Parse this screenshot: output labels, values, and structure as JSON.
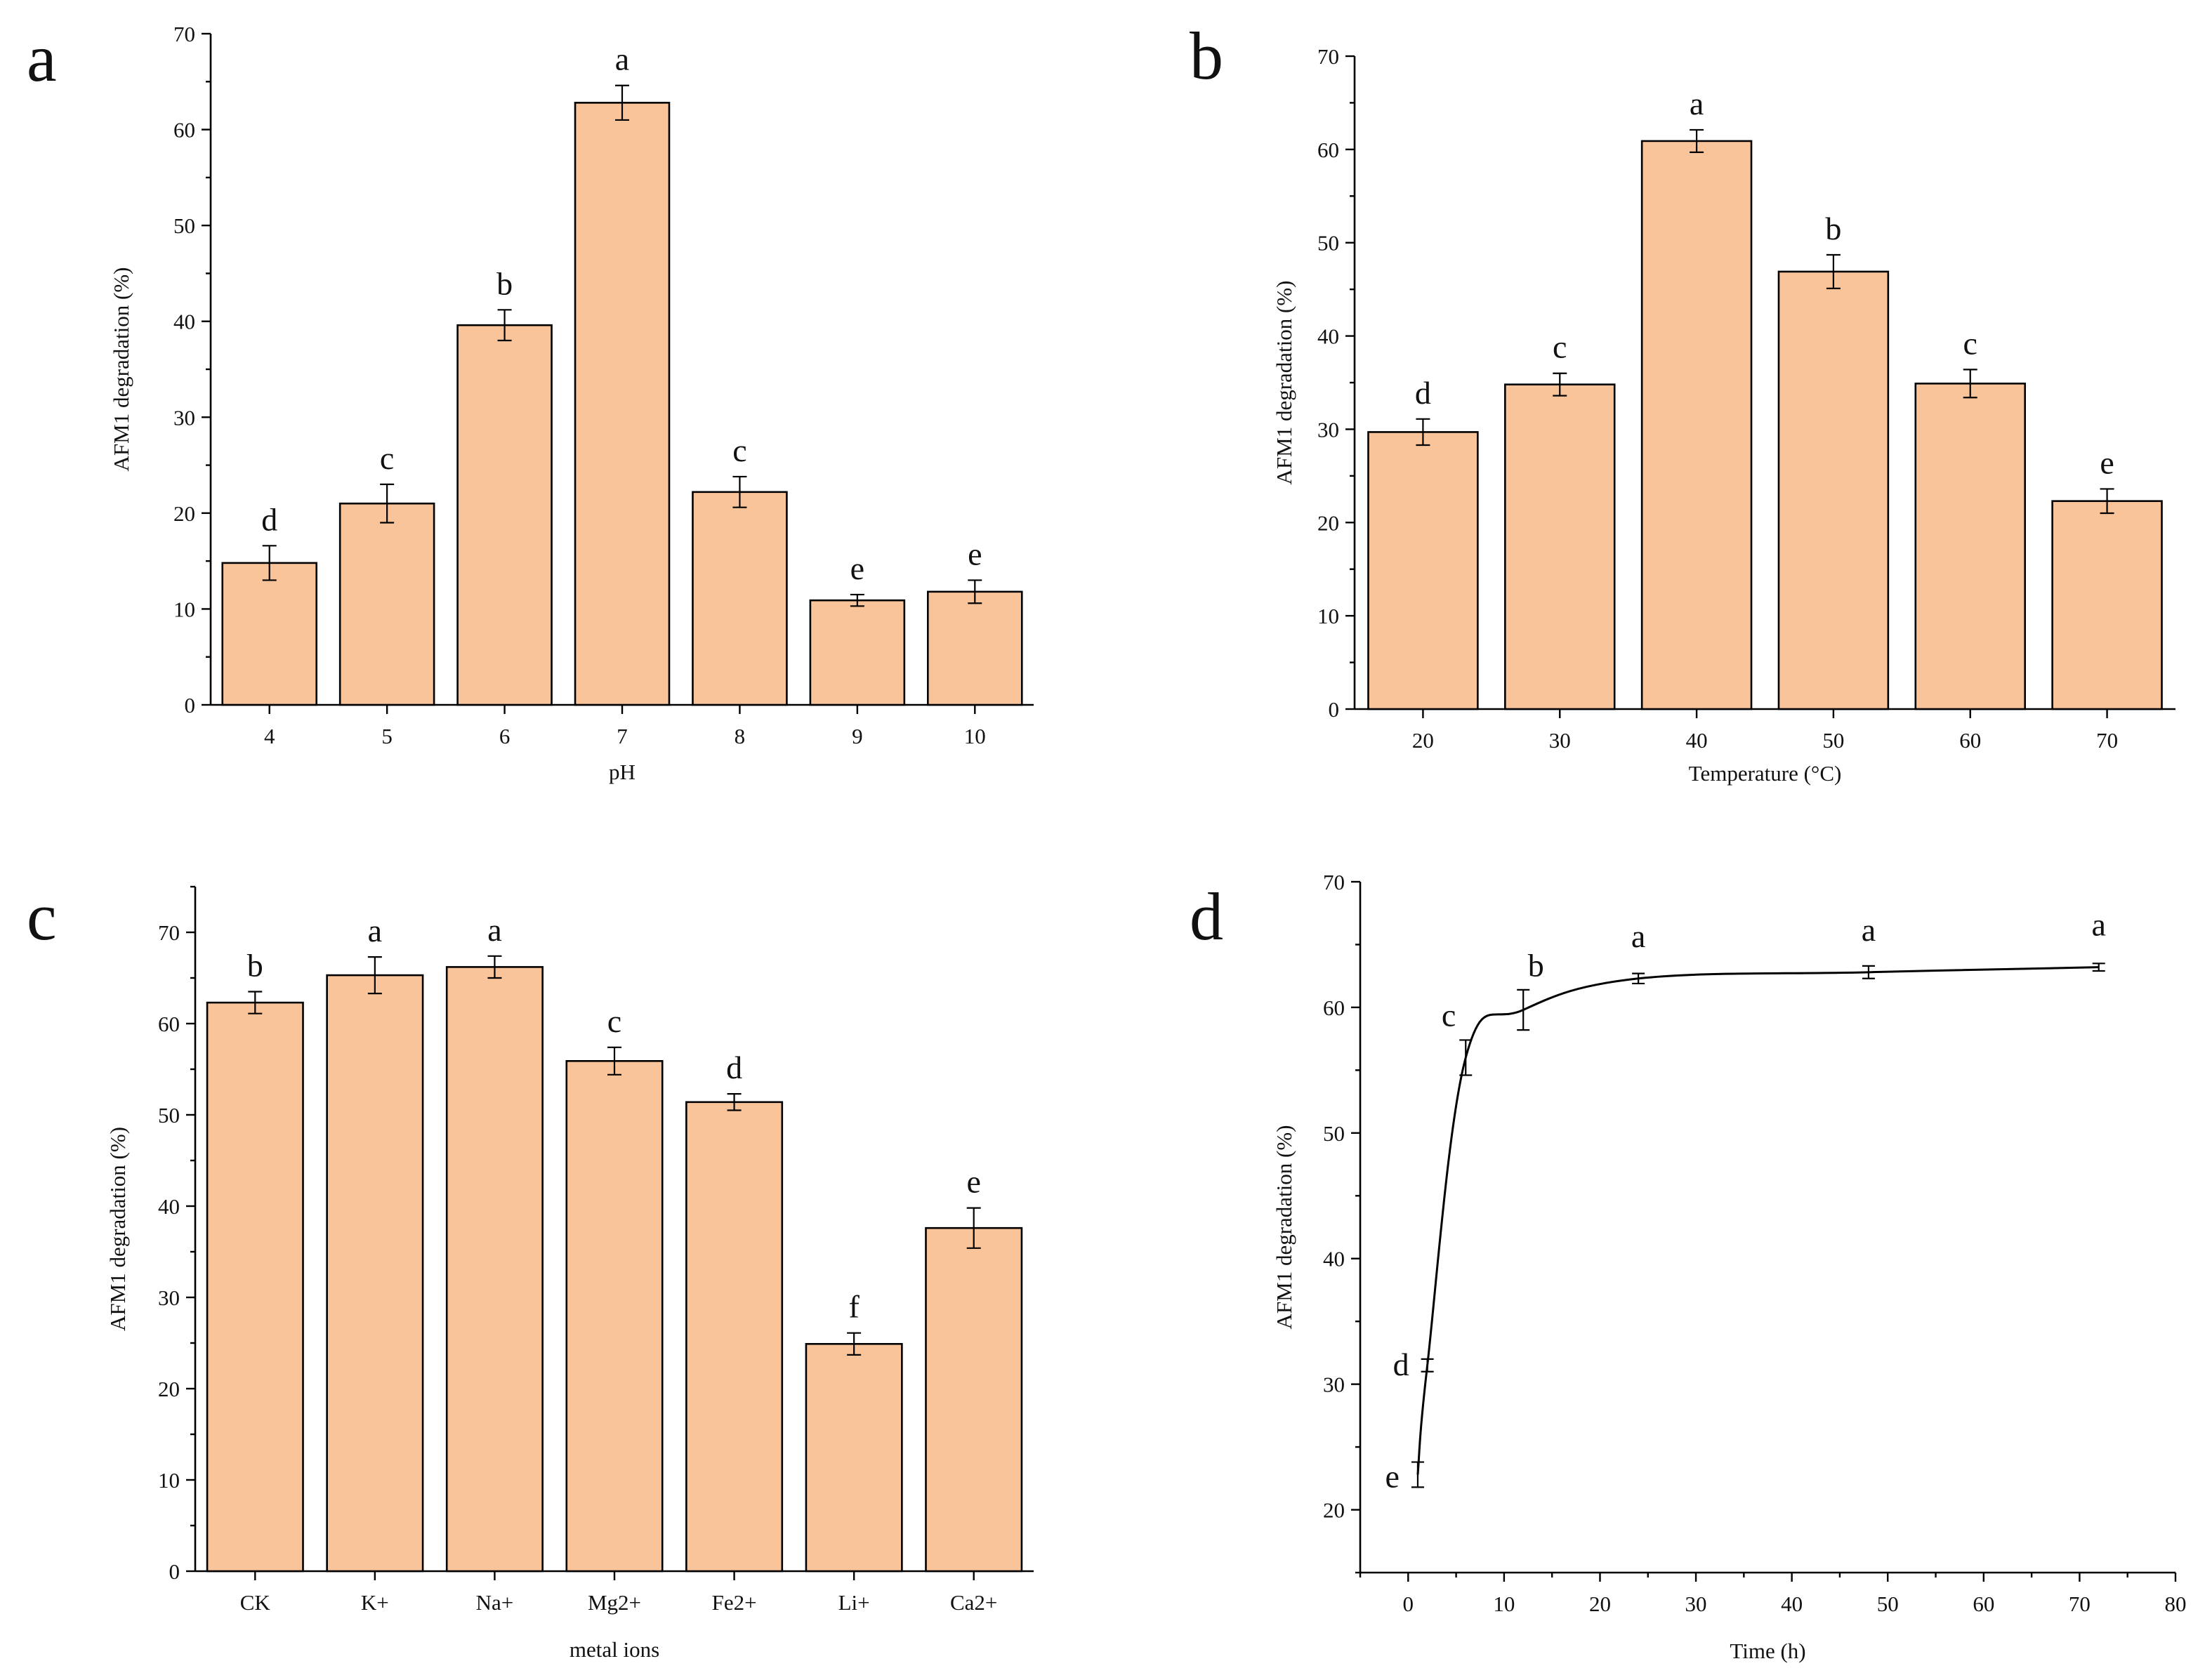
{
  "colors": {
    "bar_fill": "#f9c49a",
    "axis": "#000000"
  },
  "chart_data": [
    {
      "type": "bar",
      "panel_label": "a",
      "xlabel": "pH",
      "ylabel": "AFM1 degradation (%)",
      "ylim": [
        0,
        70
      ],
      "yticks": [
        0,
        10,
        20,
        30,
        40,
        50,
        60,
        70
      ],
      "categories": [
        "4",
        "5",
        "6",
        "7",
        "8",
        "9",
        "10"
      ],
      "values": [
        14.8,
        21.0,
        39.6,
        62.8,
        22.2,
        10.9,
        11.8
      ],
      "errors": [
        1.8,
        2.0,
        1.6,
        1.8,
        1.6,
        0.6,
        1.2
      ],
      "significance": [
        "d",
        "c",
        "b",
        "a",
        "c",
        "e",
        "e"
      ]
    },
    {
      "type": "bar",
      "panel_label": "b",
      "xlabel": "Temperature (°C)",
      "ylabel": "AFM1 degradation (%)",
      "ylim": [
        0,
        70
      ],
      "yticks": [
        0,
        10,
        20,
        30,
        40,
        50,
        60,
        70
      ],
      "categories": [
        "20",
        "30",
        "40",
        "50",
        "60",
        "70"
      ],
      "values": [
        29.7,
        34.8,
        60.9,
        46.9,
        34.9,
        22.3
      ],
      "errors": [
        1.4,
        1.2,
        1.2,
        1.8,
        1.5,
        1.3
      ],
      "significance": [
        "d",
        "c",
        "a",
        "b",
        "c",
        "e"
      ]
    },
    {
      "type": "bar",
      "panel_label": "c",
      "xlabel": "metal ions",
      "ylabel": "AFM1 degradation (%)",
      "ylim": [
        0,
        75
      ],
      "yticks": [
        0,
        10,
        20,
        30,
        40,
        50,
        60,
        70
      ],
      "categories": [
        "CK",
        "K+",
        "Na+",
        "Mg2+",
        "Fe2+",
        "Li+",
        "Ca2+"
      ],
      "values": [
        62.3,
        65.3,
        66.2,
        55.9,
        51.4,
        24.9,
        37.6
      ],
      "errors": [
        1.2,
        2.0,
        1.2,
        1.5,
        0.9,
        1.2,
        2.2
      ],
      "significance": [
        "b",
        "a",
        "a",
        "c",
        "d",
        "f",
        "e"
      ]
    },
    {
      "type": "line",
      "panel_label": "d",
      "xlabel": "Time (h)",
      "ylabel": "AFM1 degradation (%)",
      "xlim": [
        -5,
        80
      ],
      "ylim": [
        15,
        70
      ],
      "xticks": [
        0,
        10,
        20,
        30,
        40,
        50,
        60,
        70,
        80
      ],
      "yticks": [
        20,
        30,
        40,
        50,
        60,
        70
      ],
      "x": [
        1,
        2,
        6,
        12,
        24,
        48,
        72
      ],
      "y": [
        22.8,
        31.5,
        56.0,
        59.8,
        62.3,
        62.8,
        63.2
      ],
      "errors": [
        1.0,
        0.5,
        1.4,
        1.6,
        0.4,
        0.5,
        0.3
      ],
      "significance": [
        "e",
        "d",
        "c",
        "b",
        "a",
        "a",
        "a"
      ]
    }
  ]
}
